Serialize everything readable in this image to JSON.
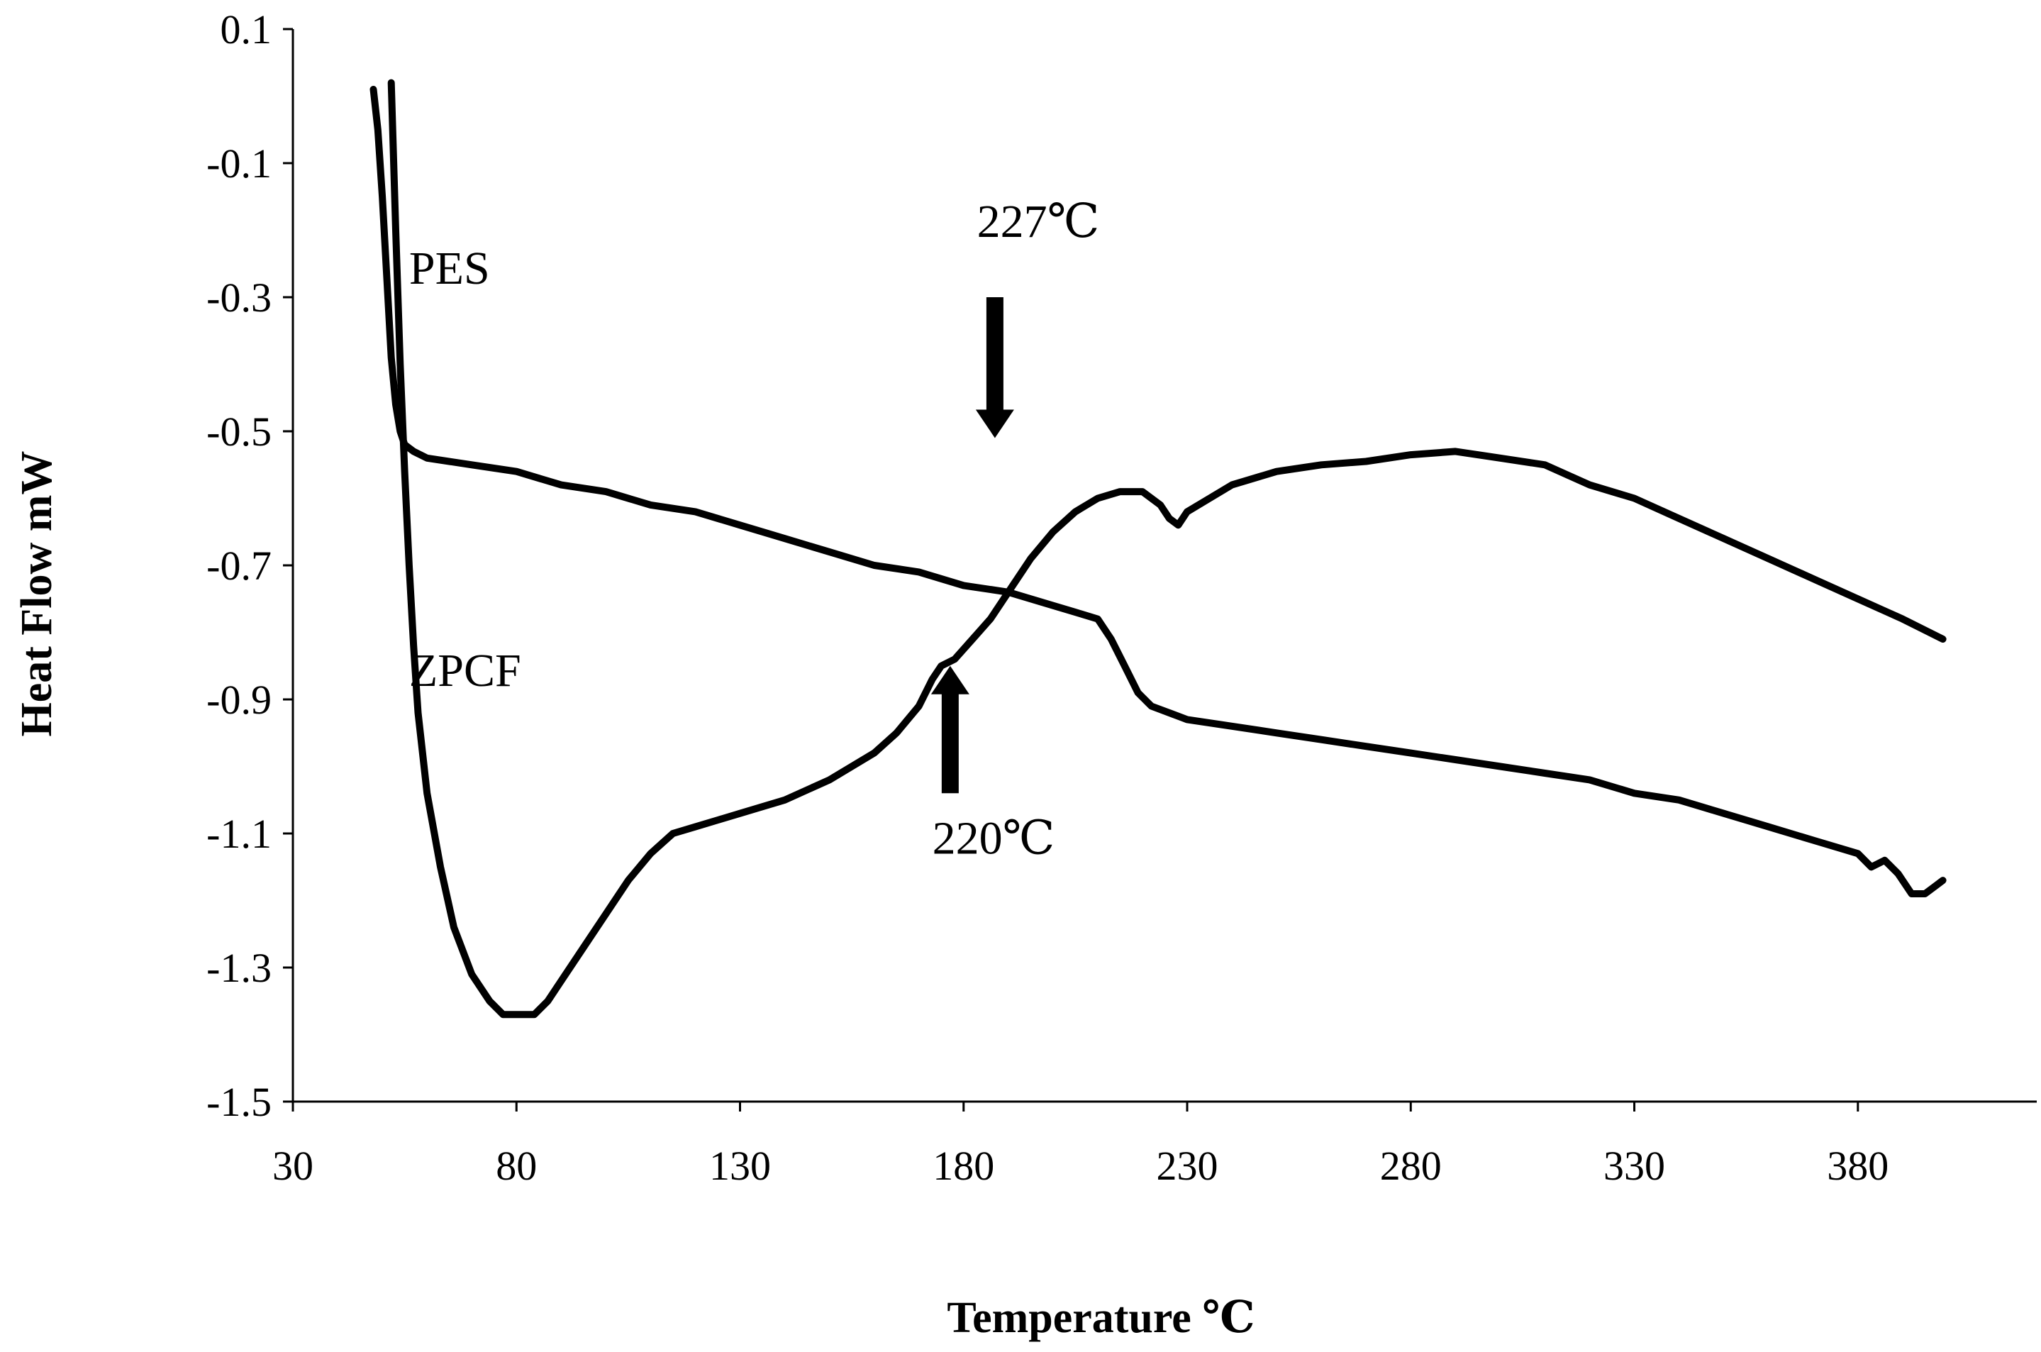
{
  "chart_data": {
    "type": "line",
    "title": "",
    "xlabel": "Temperature ℃",
    "ylabel": "Heat Flow mW",
    "xlim": [
      30,
      420
    ],
    "ylim": [
      -1.5,
      0.1
    ],
    "xticks": [
      30,
      80,
      130,
      180,
      230,
      280,
      330,
      380
    ],
    "yticks": [
      0.1,
      -0.1,
      -0.3,
      -0.5,
      -0.7,
      -0.9,
      -1.1,
      -1.3,
      -1.5
    ],
    "xtick_labels": [
      "30",
      "80",
      "130",
      "180",
      "230",
      "280",
      "330",
      "380"
    ],
    "ytick_labels": [
      "0.1",
      "-0.1",
      "-0.3",
      "-0.5",
      "-0.7",
      "-0.9",
      "-1.1",
      "-1.3",
      "-1.5"
    ],
    "grid": false,
    "series": [
      {
        "name": "PES",
        "x": [
          48,
          49,
          50,
          51,
          52,
          53,
          54,
          55,
          57,
          60,
          70,
          80,
          90,
          100,
          110,
          120,
          130,
          140,
          150,
          160,
          170,
          180,
          190,
          200,
          205,
          210,
          213,
          216,
          219,
          222,
          226,
          230,
          240,
          250,
          260,
          270,
          280,
          290,
          300,
          310,
          320,
          330,
          340,
          350,
          360,
          370,
          380,
          383,
          386,
          389,
          392,
          395,
          397,
          399
        ],
        "y": [
          0.01,
          -0.05,
          -0.15,
          -0.27,
          -0.39,
          -0.46,
          -0.5,
          -0.52,
          -0.53,
          -0.54,
          -0.55,
          -0.56,
          -0.58,
          -0.59,
          -0.61,
          -0.62,
          -0.64,
          -0.66,
          -0.68,
          -0.7,
          -0.71,
          -0.73,
          -0.74,
          -0.76,
          -0.77,
          -0.78,
          -0.81,
          -0.85,
          -0.89,
          -0.91,
          -0.92,
          -0.93,
          -0.94,
          -0.95,
          -0.96,
          -0.97,
          -0.98,
          -0.99,
          -1.0,
          -1.01,
          -1.02,
          -1.04,
          -1.05,
          -1.07,
          -1.09,
          -1.11,
          -1.13,
          -1.15,
          -1.14,
          -1.16,
          -1.19,
          -1.19,
          -1.18,
          -1.17
        ]
      },
      {
        "name": "ZPCF",
        "x": [
          52,
          53,
          54,
          55,
          56,
          57,
          58,
          60,
          63,
          66,
          70,
          74,
          77,
          80,
          84,
          87,
          90,
          95,
          100,
          105,
          110,
          115,
          120,
          125,
          130,
          140,
          150,
          160,
          165,
          170,
          173,
          175,
          178,
          182,
          186,
          190,
          195,
          200,
          205,
          210,
          215,
          220,
          224,
          226,
          228,
          230,
          235,
          240,
          250,
          260,
          270,
          280,
          290,
          300,
          310,
          320,
          330,
          340,
          350,
          360,
          370,
          380,
          390,
          399
        ],
        "y": [
          0.02,
          -0.2,
          -0.4,
          -0.56,
          -0.7,
          -0.82,
          -0.92,
          -1.04,
          -1.15,
          -1.24,
          -1.31,
          -1.35,
          -1.37,
          -1.37,
          -1.37,
          -1.35,
          -1.32,
          -1.27,
          -1.22,
          -1.17,
          -1.13,
          -1.1,
          -1.09,
          -1.08,
          -1.07,
          -1.05,
          -1.02,
          -0.98,
          -0.95,
          -0.91,
          -0.87,
          -0.85,
          -0.84,
          -0.81,
          -0.78,
          -0.74,
          -0.69,
          -0.65,
          -0.62,
          -0.6,
          -0.59,
          -0.59,
          -0.61,
          -0.63,
          -0.64,
          -0.62,
          -0.6,
          -0.58,
          -0.56,
          -0.55,
          -0.545,
          -0.535,
          -0.53,
          -0.54,
          -0.55,
          -0.58,
          -0.6,
          -0.63,
          -0.66,
          -0.69,
          -0.72,
          -0.75,
          -0.78,
          -0.81
        ]
      }
    ],
    "annotations": [
      {
        "id": "pes_label",
        "text": "PES",
        "x": 56,
        "y": -0.28
      },
      {
        "id": "zpcf_label",
        "text": "ZPCF",
        "x": 56,
        "y": -0.88
      },
      {
        "id": "label_227",
        "text": "227℃",
        "x": 183,
        "y": -0.21
      },
      {
        "id": "label_220",
        "text": "220℃",
        "x": 173,
        "y": -1.13
      }
    ],
    "arrows": [
      {
        "id": "arrow_227",
        "direction": "down",
        "x": 187,
        "y_from": -0.3,
        "y_to": -0.51
      },
      {
        "id": "arrow_220",
        "direction": "up",
        "x": 177,
        "y_from": -1.04,
        "y_to": -0.85
      }
    ]
  }
}
